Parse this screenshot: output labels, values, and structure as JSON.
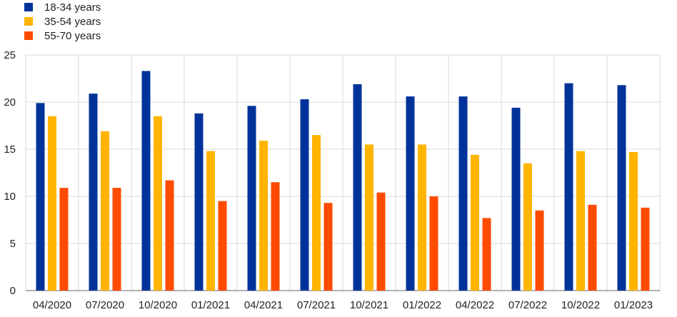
{
  "chart_data": {
    "type": "bar",
    "categories": [
      "04/2020",
      "07/2020",
      "10/2020",
      "01/2021",
      "04/2021",
      "07/2021",
      "10/2021",
      "01/2022",
      "04/2022",
      "07/2022",
      "10/2022",
      "01/2023"
    ],
    "series": [
      {
        "name": "18-34 years",
        "color": "#003399",
        "values": [
          19.9,
          20.9,
          23.3,
          18.8,
          19.6,
          20.3,
          21.9,
          20.6,
          20.6,
          19.4,
          22.0,
          21.8
        ]
      },
      {
        "name": "35-54 years",
        "color": "#FFB400",
        "values": [
          18.5,
          16.9,
          18.5,
          14.8,
          15.9,
          16.5,
          15.5,
          15.5,
          14.4,
          13.5,
          14.8,
          14.7
        ]
      },
      {
        "name": "55-70 years",
        "color": "#FF4B00",
        "values": [
          10.9,
          10.9,
          11.7,
          9.5,
          11.5,
          9.3,
          10.4,
          10.0,
          7.7,
          8.5,
          9.1,
          8.8
        ]
      }
    ],
    "ylim": [
      0,
      25
    ],
    "yticks": [
      0,
      5,
      10,
      15,
      20,
      25
    ],
    "grid": true,
    "legend_position": "top-left"
  }
}
